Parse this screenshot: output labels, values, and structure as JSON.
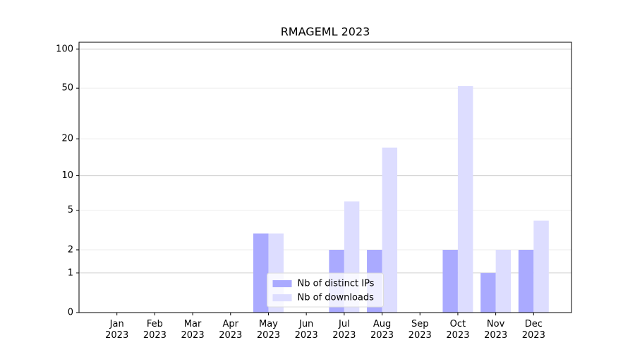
{
  "chart_data": {
    "type": "bar",
    "title": "RMAGEML 2023",
    "categories": [
      "Jan\n2023",
      "Feb\n2023",
      "Mar\n2023",
      "Apr\n2023",
      "May\n2023",
      "Jun\n2023",
      "Jul\n2023",
      "Aug\n2023",
      "Sep\n2023",
      "Oct\n2023",
      "Nov\n2023",
      "Dec\n2023"
    ],
    "series": [
      {
        "name": "Nb of distinct IPs",
        "color": "#aaaaff",
        "values": [
          0,
          0,
          0,
          0,
          3,
          0,
          2,
          2,
          0,
          2,
          1,
          2
        ]
      },
      {
        "name": "Nb of downloads",
        "color": "#ddddff",
        "values": [
          0,
          0,
          0,
          0,
          3,
          0,
          6,
          17,
          0,
          52,
          2,
          4
        ]
      }
    ],
    "y_scale": "log1p",
    "ylim": [
      0,
      113
    ],
    "yticks": [
      0,
      1,
      2,
      5,
      10,
      20,
      50,
      100
    ],
    "grid": true,
    "legend": "lower center"
  }
}
